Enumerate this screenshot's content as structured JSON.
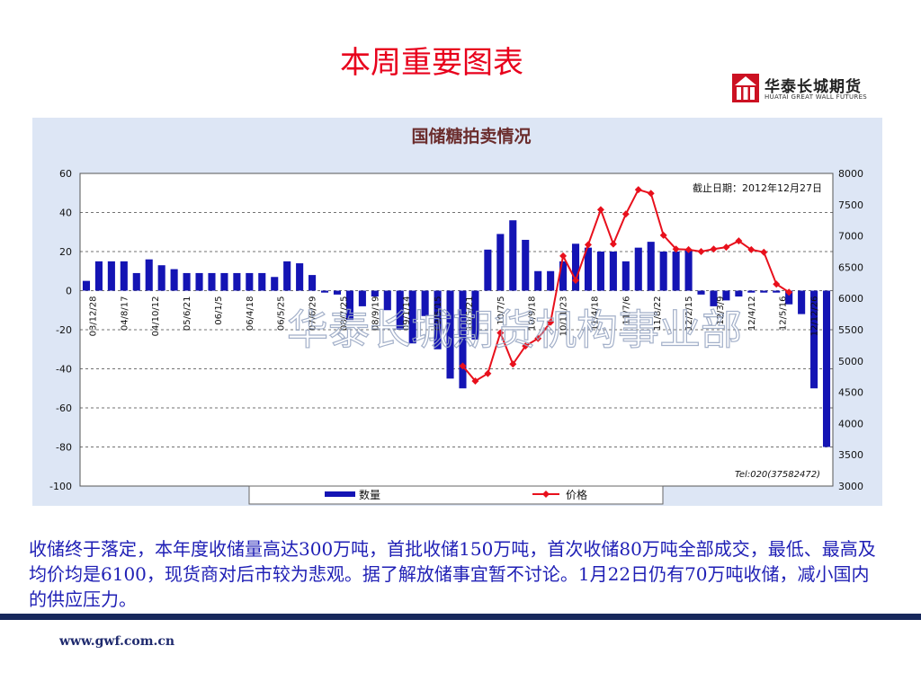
{
  "slide": {
    "title": "本周重要图表",
    "body_text": "收储终于落定，本年度收储量高达300万吨，首批收储150万吨，首次收储80万吨全部成交，最低、最高及均价均是6100，现货商对后市较为悲观。据了解放储事宜暂不讨论。1月22日仍有70万吨收储，减小国内的供应压力。",
    "footer_url": "www.gwf.com.cn"
  },
  "logo": {
    "name_cn": "华泰长城期货",
    "name_en": "HUATAI GREAT WALL FUTURES",
    "color": "#cc1122"
  },
  "watermark": "华泰长城期货机构事业部",
  "chart_data": {
    "type": "bar+line",
    "title": "国储糖拍卖情况",
    "annotation": "截止日期：2012年12月27日",
    "tel": "Tel:020(37582472)",
    "y_left": {
      "min": -100,
      "max": 60,
      "ticks": [
        60,
        40,
        20,
        0,
        -20,
        -40,
        -60,
        -80,
        -100
      ]
    },
    "y_right": {
      "min": 3000,
      "max": 8000,
      "ticks": [
        8000,
        7500,
        7000,
        6500,
        6000,
        5500,
        5000,
        4500,
        4000,
        3500,
        3000
      ]
    },
    "x_tick_labels": [
      "03/12/28",
      "04/8/17",
      "04/10/12",
      "05/6/21",
      "06/1/5",
      "06/4/18",
      "06/5/25",
      "07/6/29",
      "08/7/25",
      "08/9/19",
      "09/1/14",
      "09/5/15",
      "10/5/21",
      "10/7/5",
      "10/9/18",
      "10/11/23",
      "11/4/18",
      "11/7/6",
      "11/8/22",
      "12/2/15",
      "12/3/9",
      "12/4/12",
      "12/5/16",
      "12/12/26"
    ],
    "series": [
      {
        "name": "数量",
        "kind": "bar",
        "color": "#1414b4",
        "values": [
          5,
          15,
          15,
          15,
          9,
          16,
          13,
          11,
          9,
          9,
          9,
          9,
          9,
          9,
          9,
          7,
          15,
          14,
          8,
          -1,
          -2,
          -15,
          -8,
          -3,
          -10,
          -20,
          -27,
          -13,
          -30,
          -45,
          -50,
          -25,
          21,
          29,
          36,
          26,
          10,
          10,
          15,
          24,
          22,
          20,
          20,
          15,
          22,
          25,
          20,
          20,
          21,
          -2,
          -8,
          -5,
          -3,
          -1,
          -1,
          -1,
          -7,
          -12,
          -50,
          -80
        ]
      },
      {
        "name": "价格",
        "kind": "line",
        "color": "#e8101c",
        "points": [
          [
            30,
            4920
          ],
          [
            31,
            4680
          ],
          [
            32,
            4800
          ],
          [
            33,
            5450
          ],
          [
            34,
            4950
          ],
          [
            35,
            5240
          ],
          [
            36,
            5360
          ],
          [
            37,
            5620
          ],
          [
            38,
            6680
          ],
          [
            39,
            6290
          ],
          [
            40,
            6860
          ],
          [
            41,
            7420
          ],
          [
            42,
            6870
          ],
          [
            43,
            7350
          ],
          [
            44,
            7740
          ],
          [
            45,
            7680
          ],
          [
            46,
            7010
          ],
          [
            47,
            6790
          ],
          [
            48,
            6780
          ],
          [
            49,
            6750
          ],
          [
            50,
            6790
          ],
          [
            51,
            6820
          ],
          [
            52,
            6920
          ],
          [
            53,
            6780
          ],
          [
            54,
            6740
          ],
          [
            55,
            6230
          ],
          [
            56,
            6100
          ]
        ]
      }
    ],
    "legend": {
      "placement": "bottom"
    }
  }
}
